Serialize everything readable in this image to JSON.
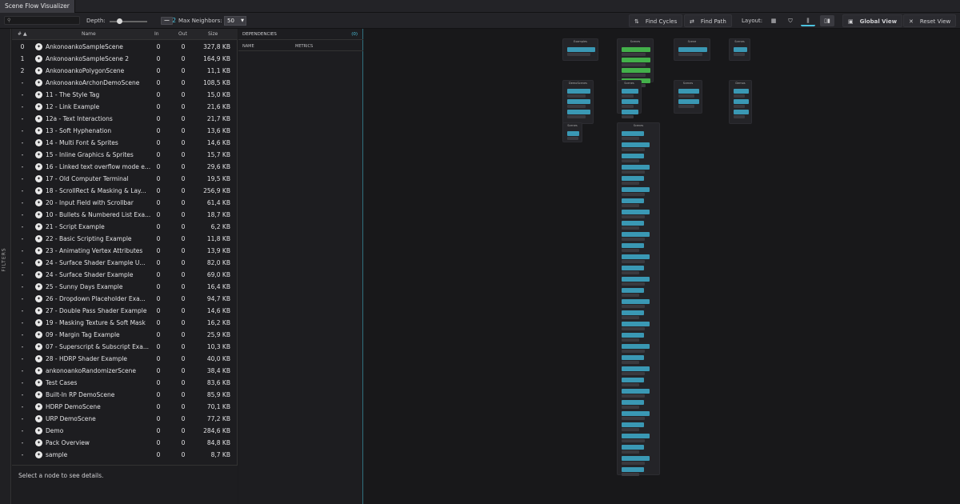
{
  "tab": {
    "title": "Scene Flow Visualizer"
  },
  "toolbar": {
    "search_placeholder": "",
    "depth_label": "Depth:",
    "depth_value": "2",
    "depth_button": "━━",
    "max_neighbors_label": "Max Neighbors:",
    "max_neighbors_value": "50",
    "find_cycles": "Find Cycles",
    "find_path": "Find Path",
    "layout_label": "Layout:",
    "global_view": "Global View",
    "reset_view": "Reset View"
  },
  "filters_label": "FILTERS",
  "table": {
    "headers": {
      "index": "#",
      "name": "Name",
      "in": "In",
      "out": "Out",
      "size": "Size"
    },
    "rows": [
      {
        "idx": "0",
        "name": "AnkonoankoSampleScene",
        "in": "0",
        "out": "0",
        "size": "327,8 KB"
      },
      {
        "idx": "1",
        "name": "AnkonoankoSampleScene 2",
        "in": "0",
        "out": "0",
        "size": "164,9 KB"
      },
      {
        "idx": "2",
        "name": "AnkonoankoPolygonScene",
        "in": "0",
        "out": "0",
        "size": "11,1 KB"
      },
      {
        "idx": "-",
        "name": "AnkonoankoArchonDemoScene",
        "in": "0",
        "out": "0",
        "size": "108,5 KB"
      },
      {
        "idx": "-",
        "name": "11 - The Style Tag",
        "in": "0",
        "out": "0",
        "size": "15,0 KB"
      },
      {
        "idx": "-",
        "name": "12 - Link Example",
        "in": "0",
        "out": "0",
        "size": "21,6 KB"
      },
      {
        "idx": "-",
        "name": "12a - Text Interactions",
        "in": "0",
        "out": "0",
        "size": "21,7 KB"
      },
      {
        "idx": "-",
        "name": "13 - Soft Hyphenation",
        "in": "0",
        "out": "0",
        "size": "13,6 KB"
      },
      {
        "idx": "-",
        "name": "14 - Multi Font & Sprites",
        "in": "0",
        "out": "0",
        "size": "14,6 KB"
      },
      {
        "idx": "-",
        "name": "15 - Inline Graphics & Sprites",
        "in": "0",
        "out": "0",
        "size": "15,7 KB"
      },
      {
        "idx": "-",
        "name": "16 - Linked text overflow mode ex...",
        "in": "0",
        "out": "0",
        "size": "29,6 KB"
      },
      {
        "idx": "-",
        "name": "17 - Old Computer Terminal",
        "in": "0",
        "out": "0",
        "size": "19,5 KB"
      },
      {
        "idx": "-",
        "name": "18 - ScrollRect & Masking & Lay...",
        "in": "0",
        "out": "0",
        "size": "256,9 KB"
      },
      {
        "idx": "-",
        "name": "20 - Input Field with Scrollbar",
        "in": "0",
        "out": "0",
        "size": "61,4 KB"
      },
      {
        "idx": "-",
        "name": "10 - Bullets & Numbered List Exa...",
        "in": "0",
        "out": "0",
        "size": "18,7 KB"
      },
      {
        "idx": "-",
        "name": "21 - Script Example",
        "in": "0",
        "out": "0",
        "size": "6,2 KB"
      },
      {
        "idx": "-",
        "name": "22 - Basic Scripting Example",
        "in": "0",
        "out": "0",
        "size": "11,8 KB"
      },
      {
        "idx": "-",
        "name": "23 - Animating Vertex Attributes",
        "in": "0",
        "out": "0",
        "size": "13,9 KB"
      },
      {
        "idx": "-",
        "name": "24 - Surface Shader Example U...",
        "in": "0",
        "out": "0",
        "size": "82,0 KB"
      },
      {
        "idx": "-",
        "name": "24 - Surface Shader Example",
        "in": "0",
        "out": "0",
        "size": "69,0 KB"
      },
      {
        "idx": "-",
        "name": "25 - Sunny Days Example",
        "in": "0",
        "out": "0",
        "size": "16,4 KB"
      },
      {
        "idx": "-",
        "name": "26 - Dropdown Placeholder Exa...",
        "in": "0",
        "out": "0",
        "size": "94,7 KB"
      },
      {
        "idx": "-",
        "name": "27 - Double Pass Shader Example",
        "in": "0",
        "out": "0",
        "size": "14,6 KB"
      },
      {
        "idx": "-",
        "name": "19 - Masking Texture & Soft Mask",
        "in": "0",
        "out": "0",
        "size": "16,2 KB"
      },
      {
        "idx": "-",
        "name": "09 - Margin Tag Example",
        "in": "0",
        "out": "0",
        "size": "25,9 KB"
      },
      {
        "idx": "-",
        "name": "07 - Superscript & Subscript Exa...",
        "in": "0",
        "out": "0",
        "size": "10,3 KB"
      },
      {
        "idx": "-",
        "name": "28 - HDRP Shader Example",
        "in": "0",
        "out": "0",
        "size": "40,0 KB"
      },
      {
        "idx": "-",
        "name": "ankonoankoRandomizerScene",
        "in": "0",
        "out": "0",
        "size": "38,4 KB"
      },
      {
        "idx": "-",
        "name": "Test Cases",
        "in": "0",
        "out": "0",
        "size": "83,6 KB"
      },
      {
        "idx": "-",
        "name": "Built-In RP DemoScene",
        "in": "0",
        "out": "0",
        "size": "85,9 KB"
      },
      {
        "idx": "-",
        "name": "HDRP DemoScene",
        "in": "0",
        "out": "0",
        "size": "70,1 KB"
      },
      {
        "idx": "-",
        "name": "URP DemoScene",
        "in": "0",
        "out": "0",
        "size": "77,2 KB"
      },
      {
        "idx": "-",
        "name": "Demo",
        "in": "0",
        "out": "0",
        "size": "284,6 KB"
      },
      {
        "idx": "-",
        "name": "Pack Overview",
        "in": "0",
        "out": "0",
        "size": "84,8 KB"
      },
      {
        "idx": "-",
        "name": "sample",
        "in": "0",
        "out": "0",
        "size": "8,7 KB"
      }
    ]
  },
  "details_placeholder": "Select a node to see details.",
  "dependencies": {
    "title": "DEPENDENCIES",
    "count": "(0)",
    "col_name": "NAME",
    "col_metrics": "METRICS"
  },
  "graph": {
    "group_titles": [
      "Examples",
      "Scenes",
      "Scene",
      "Scenes",
      "DemoScenes",
      "Scenes",
      "Scenes",
      "Demos",
      "Scenes",
      "Scenes"
    ]
  },
  "colors": {
    "accent": "#4cc3df",
    "node": "#3a98b4",
    "node_green": "#43b04a"
  }
}
